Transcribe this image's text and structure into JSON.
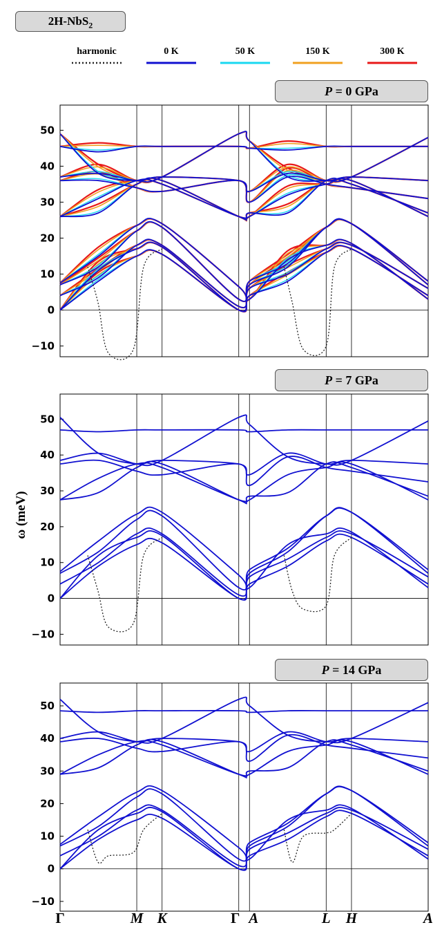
{
  "material_label": "2H-NbS",
  "material_sub": "2",
  "legend": [
    {
      "label": "harmonic",
      "color": "#222222",
      "dash": true
    },
    {
      "label": "0 K",
      "color": "#1010d0",
      "dash": false
    },
    {
      "label": "50 K",
      "color": "#18d8f0",
      "dash": false
    },
    {
      "label": "150 K",
      "color": "#f0a020",
      "dash": false
    },
    {
      "label": "300 K",
      "color": "#e81818",
      "dash": false
    }
  ],
  "chart_data": [
    {
      "type": "line",
      "panel_label": "P = 0 GPa",
      "ylabel": "",
      "ylim": [
        -13,
        57
      ],
      "yticks": [
        -10,
        0,
        10,
        20,
        30,
        40,
        50
      ],
      "kpoint_labels": [
        "Γ",
        "M",
        "K",
        "Γ",
        "A",
        "L",
        "H",
        "A"
      ],
      "kpoint_positions": [
        0,
        1,
        1.33,
        2.33,
        2.47,
        3.47,
        3.8,
        4.8
      ],
      "series": [
        {
          "name": "harmonic",
          "values_soft_min": [
            -12,
            -11
          ]
        },
        {
          "name": "0 K"
        },
        {
          "name": "50 K"
        },
        {
          "name": "150 K"
        },
        {
          "name": "300 K"
        }
      ]
    },
    {
      "type": "line",
      "panel_label": "P = 7 GPa",
      "ylabel": "ω (meV)",
      "ylim": [
        -13,
        57
      ],
      "yticks": [
        -10,
        0,
        10,
        20,
        30,
        40,
        50
      ],
      "kpoint_labels": [
        "Γ",
        "M",
        "K",
        "Γ",
        "A",
        "L",
        "H",
        "A"
      ],
      "kpoint_positions": [
        0,
        1,
        1.33,
        2.33,
        2.47,
        3.47,
        3.8,
        4.8
      ]
    },
    {
      "type": "line",
      "panel_label": "P = 14 GPa",
      "ylabel": "",
      "ylim": [
        -13,
        57
      ],
      "yticks": [
        -10,
        0,
        10,
        20,
        30,
        40,
        50
      ],
      "kpoint_labels": [
        "Γ",
        "M",
        "K",
        "Γ",
        "A",
        "L",
        "H",
        "A"
      ],
      "kpoint_positions": [
        0,
        1,
        1.33,
        2.33,
        2.47,
        3.47,
        3.8,
        4.8
      ]
    }
  ],
  "axis_ylabel": "ω (meV)",
  "panel_labels": {
    "p0": "= 0 GPa",
    "p7": "= 7 GPa",
    "p14": "= 14 GPa"
  },
  "panel_var": "P"
}
